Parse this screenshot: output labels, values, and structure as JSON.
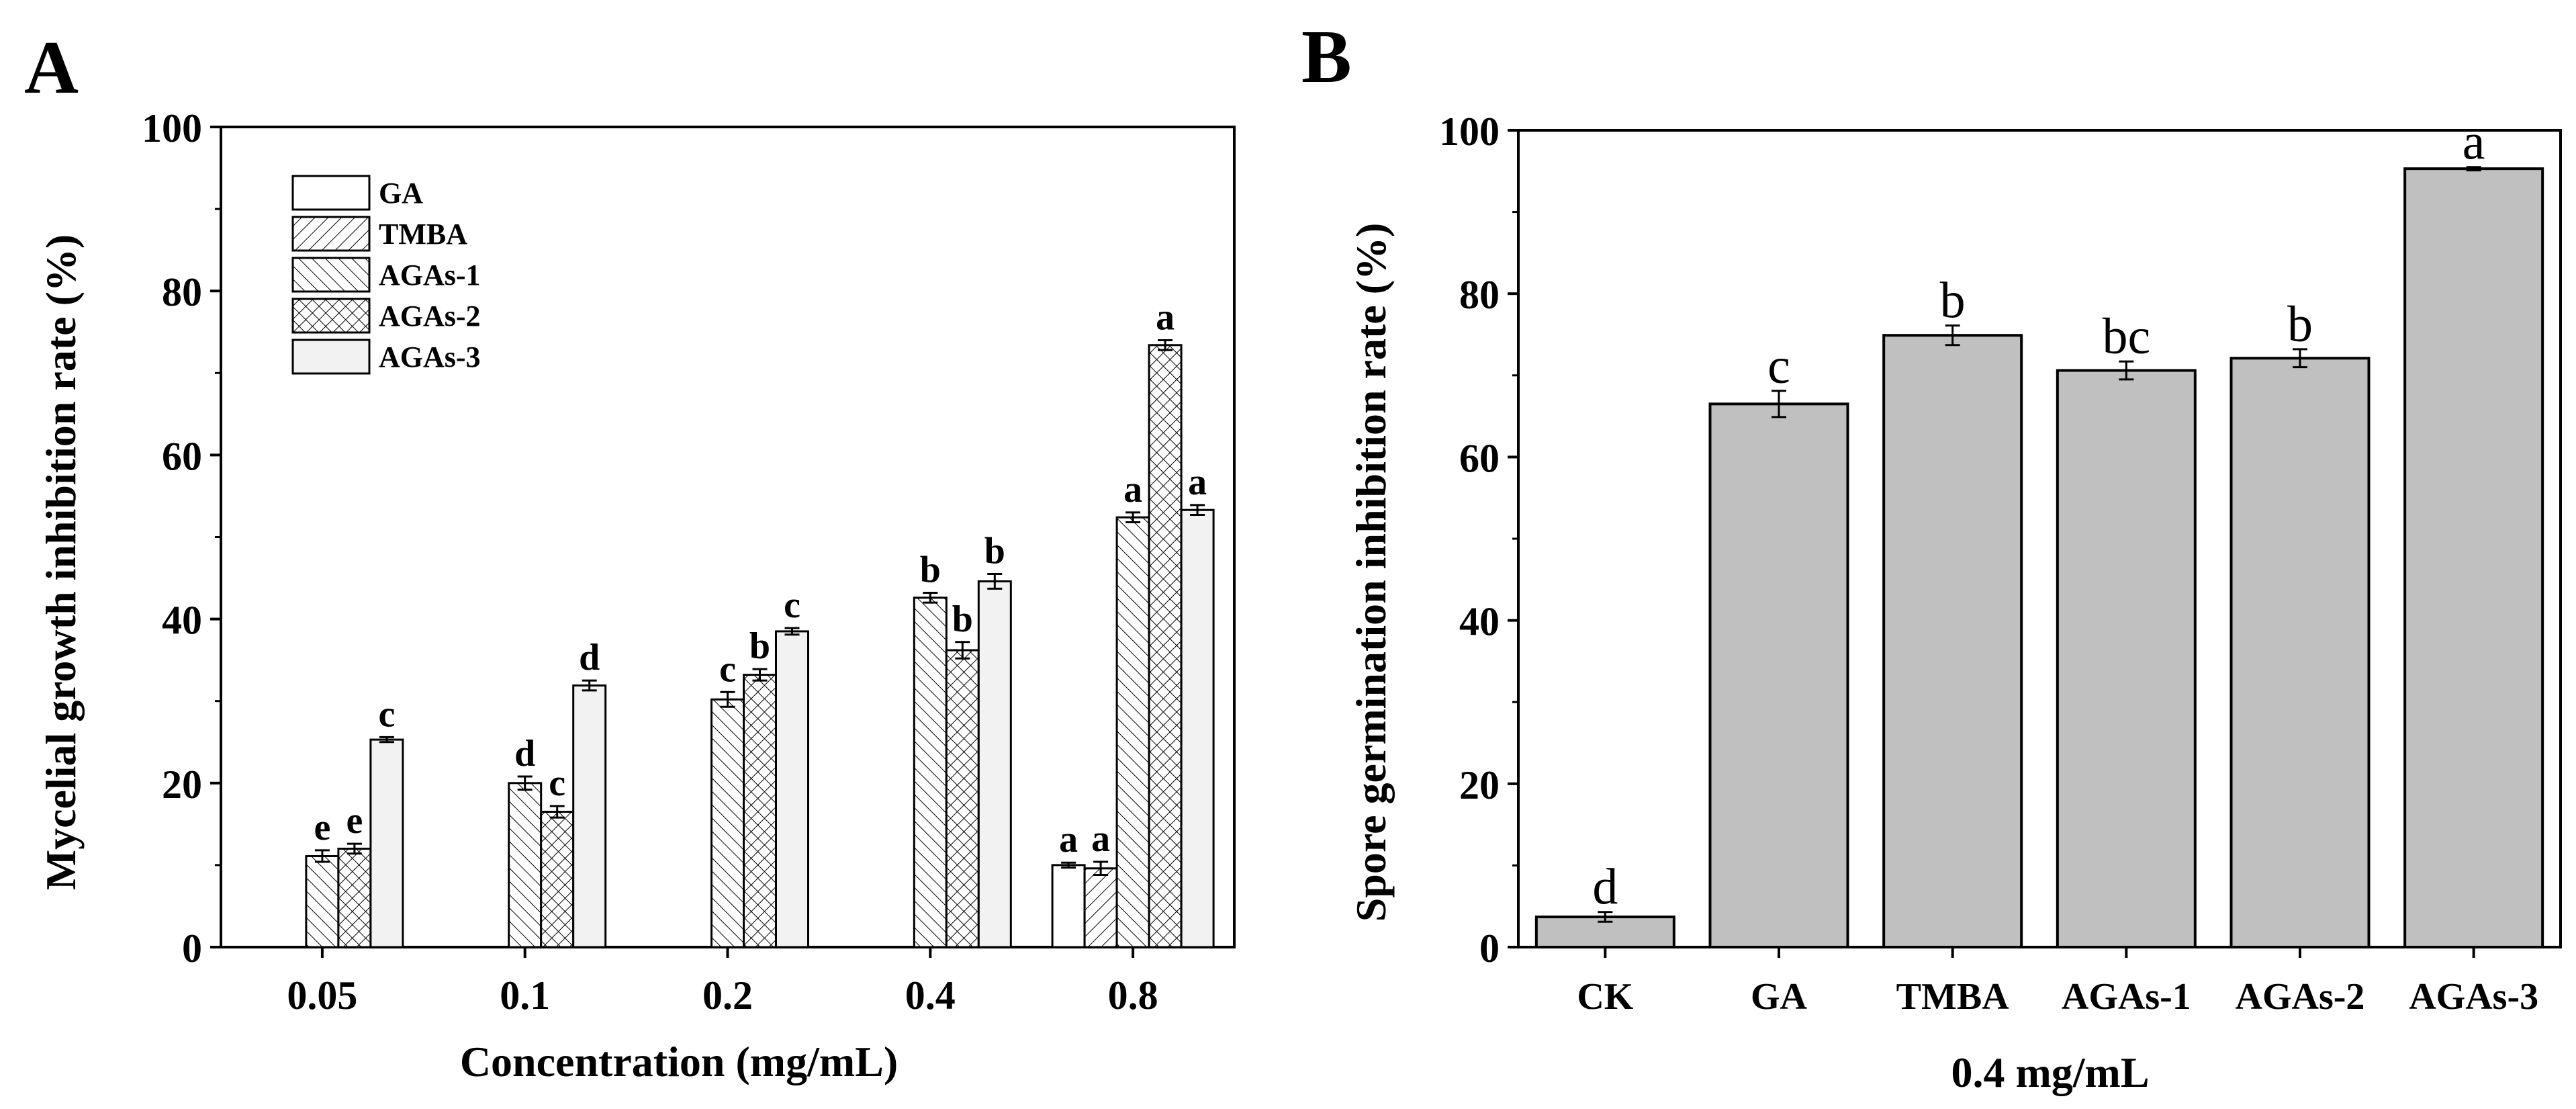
{
  "chart_data": [
    {
      "panel_label": "A",
      "type": "bar",
      "xlabel": "Concentration (mg/mL)",
      "ylabel": "Mycelial growth inhibition rate (%)",
      "ylim": [
        0,
        100
      ],
      "yticks": [
        "0",
        "20",
        "40",
        "60",
        "80",
        "100"
      ],
      "categories": [
        "0.05",
        "0.1",
        "0.2",
        "0.4",
        "0.8"
      ],
      "series": [
        {
          "name": "GA",
          "pattern": "none",
          "fill": "#ffffff",
          "values": [
            null,
            null,
            null,
            null,
            10.0
          ],
          "errors": [
            null,
            null,
            null,
            null,
            0.3
          ],
          "letters": [
            null,
            null,
            null,
            null,
            "a"
          ]
        },
        {
          "name": "TMBA",
          "pattern": "fwd",
          "fill": "#ffffff",
          "values": [
            null,
            null,
            null,
            null,
            9.6
          ],
          "errors": [
            null,
            null,
            null,
            null,
            0.8
          ],
          "letters": [
            null,
            null,
            null,
            null,
            "a"
          ]
        },
        {
          "name": "AGAs-1",
          "pattern": "back",
          "fill": "#ffffff",
          "values": [
            11.1,
            20.0,
            30.2,
            42.6,
            52.4
          ],
          "errors": [
            0.7,
            0.8,
            0.9,
            0.6,
            0.6
          ],
          "letters": [
            "e",
            "d",
            "c",
            "b",
            "a"
          ]
        },
        {
          "name": "AGAs-2",
          "pattern": "cross",
          "fill": "#ffffff",
          "values": [
            12.0,
            16.5,
            33.2,
            36.2,
            73.4
          ],
          "errors": [
            0.6,
            0.7,
            0.7,
            1.0,
            0.6
          ],
          "letters": [
            "e",
            "c",
            "b",
            "b",
            "a"
          ]
        },
        {
          "name": "AGAs-3",
          "pattern": "none",
          "fill": "#f2f2f2",
          "values": [
            25.3,
            31.9,
            38.5,
            44.6,
            53.3
          ],
          "errors": [
            0.3,
            0.6,
            0.4,
            0.9,
            0.6
          ],
          "letters": [
            "c",
            "d",
            "c",
            "b",
            "a"
          ]
        }
      ]
    },
    {
      "panel_label": "B",
      "type": "bar",
      "xlabel": "0.4 mg/mL",
      "ylabel": "Spore germination inhibition rate (%)",
      "ylim": [
        0,
        100
      ],
      "yticks": [
        "0",
        "20",
        "40",
        "60",
        "80",
        "100"
      ],
      "fill": "#c0c0c0",
      "categories": [
        "CK",
        "GA",
        "TMBA",
        "AGAs-1",
        "AGAs-2",
        "AGAs-3"
      ],
      "values": [
        3.7,
        66.5,
        74.9,
        70.6,
        72.1,
        95.3
      ],
      "errors": [
        0.6,
        1.6,
        1.2,
        1.1,
        1.1,
        0.2
      ],
      "letters": [
        "d",
        "c",
        "b",
        "bc",
        "b",
        "a"
      ]
    }
  ]
}
